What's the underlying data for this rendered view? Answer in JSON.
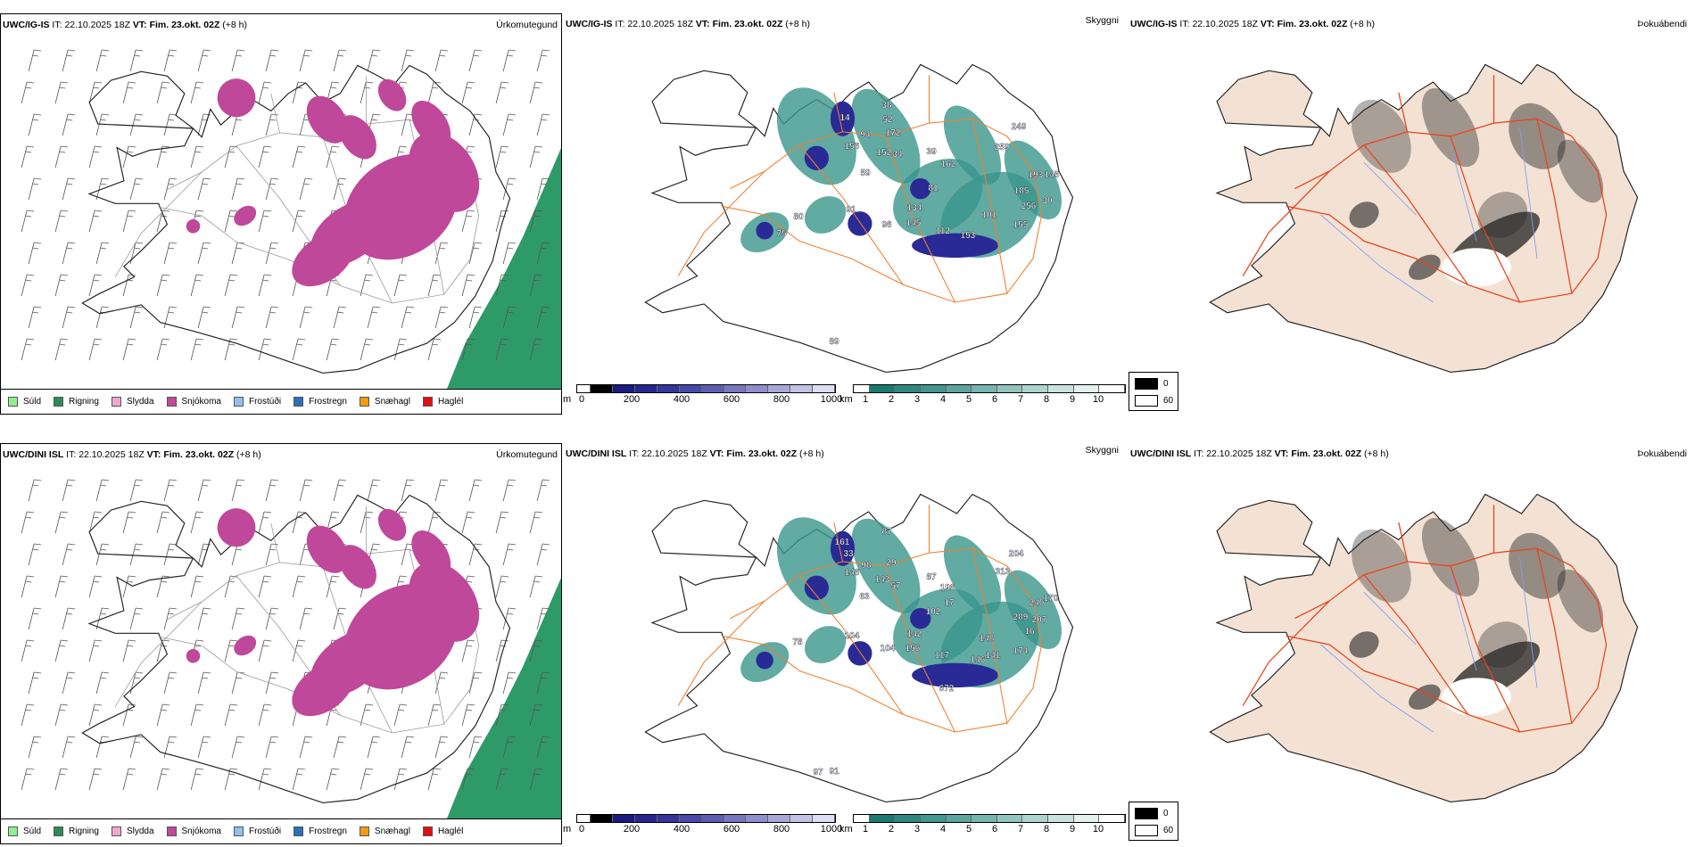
{
  "panel_titles": {
    "precip_type": "Úrkomutegund",
    "visibility": "Skyggni",
    "fog": "Þokuábendi"
  },
  "rows": [
    {
      "model": "UWC/IG-IS",
      "it_label": "IT:",
      "it": "22.10.2025 18Z",
      "vt": "VT: Fim. 23.okt. 02Z",
      "lead": "(+8 h)",
      "snow_labels": [
        "14",
        "38",
        "52",
        "172",
        "94",
        "156",
        "152",
        "34",
        "59",
        "39",
        "162",
        "81",
        "134",
        "91",
        "80",
        "96",
        "145",
        "112",
        "153",
        "101",
        "155",
        "256",
        "30",
        "185",
        "193",
        "145",
        "259",
        "249",
        "75",
        "89"
      ]
    },
    {
      "model": "UWC/DINI ISL",
      "it_label": "IT:",
      "it": "22.10.2025 18Z",
      "vt": "VT: Fim. 23.okt. 02Z",
      "lead": "(+8 h)",
      "snow_labels": [
        "87",
        "161",
        "33",
        "98",
        "146",
        "29",
        "143",
        "57",
        "63",
        "87",
        "196",
        "17",
        "102",
        "142",
        "104",
        "78",
        "104",
        "156",
        "117",
        "146",
        "141",
        "148",
        "174",
        "672",
        "313",
        "204",
        "240",
        "170",
        "289",
        "207",
        "16",
        "91",
        "97"
      ]
    }
  ],
  "precip_legend": [
    {
      "label": "Súld",
      "color": "#90ee90"
    },
    {
      "label": "Rigning",
      "color": "#2e8b57"
    },
    {
      "label": "Slydda",
      "color": "#f0a8d0"
    },
    {
      "label": "Snjókoma",
      "color": "#c0489a"
    },
    {
      "label": "Frostúði",
      "color": "#90c0f0"
    },
    {
      "label": "Frostregn",
      "color": "#2a70b8"
    },
    {
      "label": "Snæhagl",
      "color": "#f39c12"
    },
    {
      "label": "Haglél",
      "color": "#e01010"
    }
  ],
  "height_bar": {
    "unit": "m",
    "ticks": [
      "0",
      "200",
      "400",
      "600",
      "800",
      "1000"
    ],
    "colors": [
      "#000000",
      "#1a1a80",
      "#26268f",
      "#35359c",
      "#4848a8",
      "#5c5cb4",
      "#7676c0",
      "#8e8ecc",
      "#a8a8d8",
      "#c2c2e4",
      "#dcdcf2"
    ]
  },
  "vis_bar": {
    "unit": "km",
    "ticks": [
      "1",
      "2",
      "3",
      "4",
      "5",
      "6",
      "7",
      "8",
      "9",
      "10"
    ],
    "colors": [
      "#1a7a72",
      "#2e8880",
      "#44968f",
      "#5ca59e",
      "#76b4ae",
      "#92c4be",
      "#aed4cf",
      "#cae3df",
      "#e4f1ef",
      "#ffffff"
    ]
  },
  "fog_legend": {
    "min": "0",
    "max": "60",
    "min_color": "#000000",
    "max_color": "#ffffff"
  }
}
